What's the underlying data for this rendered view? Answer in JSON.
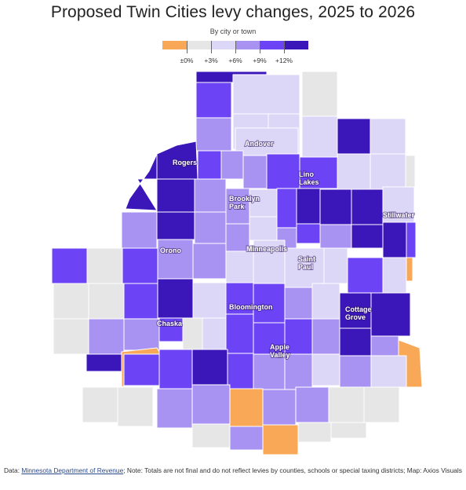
{
  "title": "Proposed Twin Cities levy changes, 2025 to 2026",
  "subtitle": "By city or town",
  "colors": {
    "neg": "#f9a857",
    "low": "#e6e6e6",
    "mid1": "#dcd6f7",
    "mid2": "#a993f2",
    "mid3": "#6c43f5",
    "high": "#3b16b8"
  },
  "legend": {
    "labels": [
      "±0%",
      "+3%",
      "+6%",
      "+9%",
      "+12%"
    ]
  },
  "cities": [
    {
      "name": "Andover"
    },
    {
      "name": "Rogers"
    },
    {
      "name": "Lino Lakes"
    },
    {
      "name": "Brooklyn Park"
    },
    {
      "name": "Stillwater"
    },
    {
      "name": "Orono"
    },
    {
      "name": "Minneapolis"
    },
    {
      "name": "Saint Paul"
    },
    {
      "name": "Bloomington"
    },
    {
      "name": "Cottage Grove"
    },
    {
      "name": "Chaska"
    },
    {
      "name": "Apple Valley"
    }
  ],
  "footer": {
    "data_prefix": "Data: ",
    "source": "Minnesota Department of Revenue",
    "note": "; Note: Totals are not final and do not reflect levies by counties, schools or special taxing districts; Map: Axios Visuals"
  }
}
